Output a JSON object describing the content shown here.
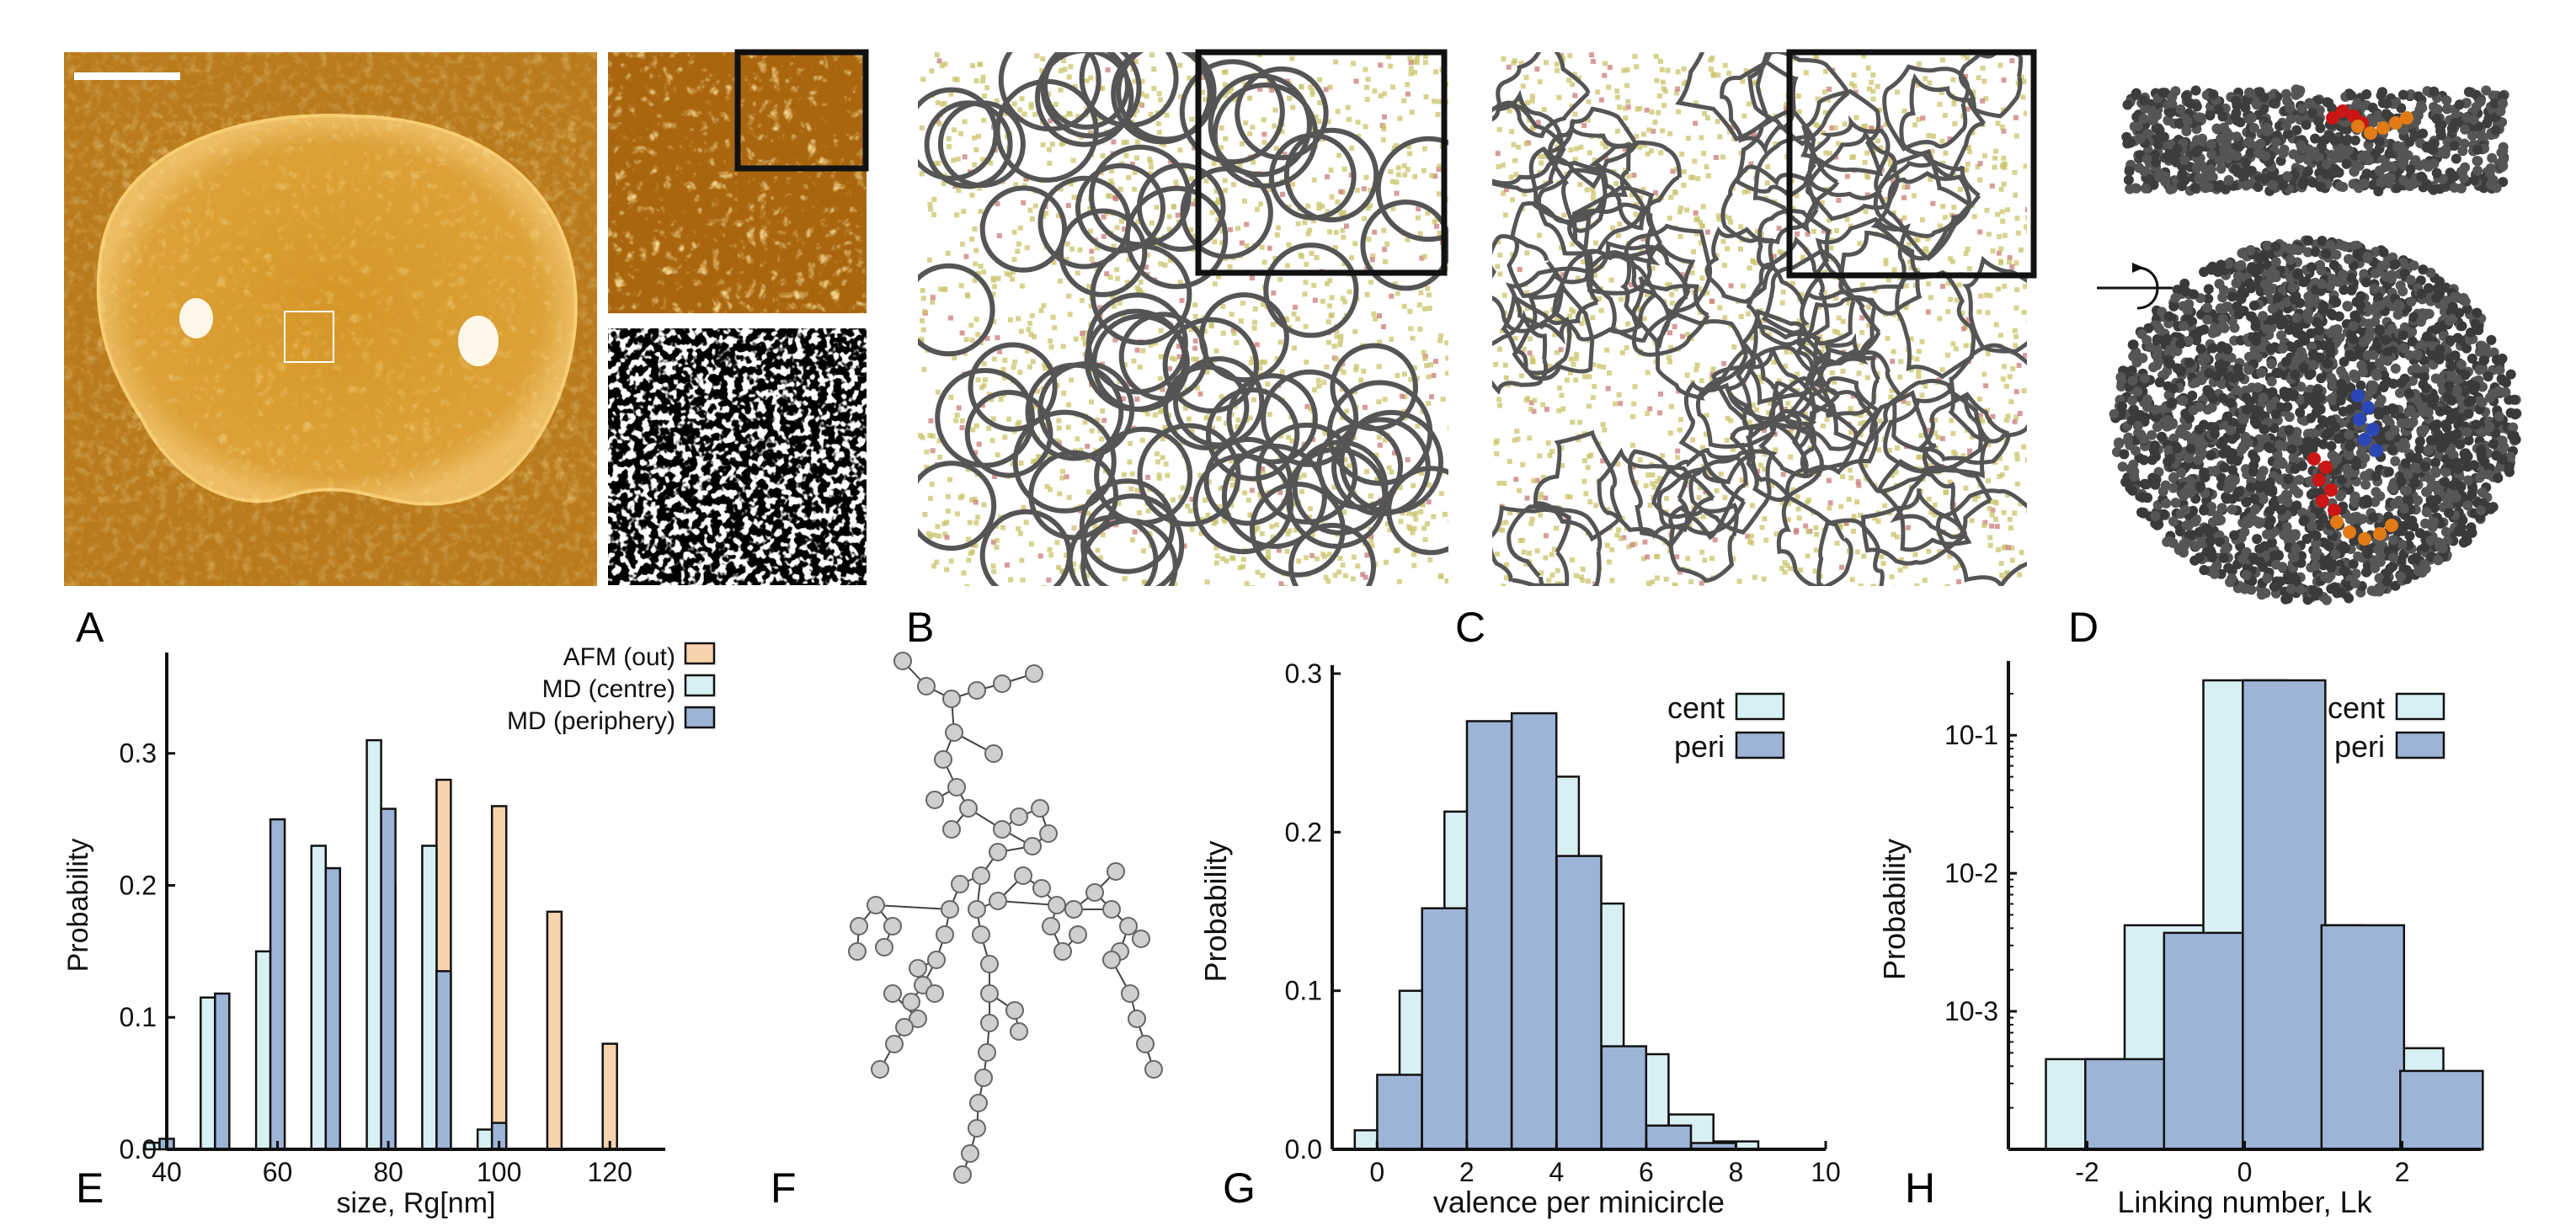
{
  "panel_labels": {
    "a": "A",
    "b": "B",
    "c": "C",
    "d": "D",
    "e": "E",
    "f": "F",
    "g": "G",
    "h": "H"
  },
  "colors": {
    "afm": "#f9d3ae",
    "centre": "#d8f0f4",
    "periphery": "#9db4d6",
    "afm_bg": "#c98a1f",
    "network_line": "#555555",
    "dot_yellow": "#c9c46a",
    "dot_red": "#c97a7a"
  },
  "chart_data": [
    {
      "id": "E",
      "type": "bar",
      "xlabel": "size, Rg[nm]",
      "ylabel": "Probability",
      "xlim": [
        40,
        130
      ],
      "ylim": [
        0,
        0.37
      ],
      "xticks": [
        40,
        60,
        80,
        100,
        120
      ],
      "xtick_labels": [
        "40",
        "60",
        "80",
        "100",
        "120"
      ],
      "yticks": [
        0.0,
        0.1,
        0.2,
        0.3
      ],
      "ytick_labels": [
        "0.0",
        "0.1",
        "0.2",
        "0.3"
      ],
      "legend_position": "top-right",
      "series": [
        {
          "name": "AFM (out)",
          "x": [
            80,
            90,
            100,
            110,
            120
          ],
          "values": [
            0.2,
            0.28,
            0.26,
            0.18,
            0.08
          ]
        },
        {
          "name": "MD (centre)",
          "x": [
            40,
            50,
            60,
            70,
            80,
            90,
            100
          ],
          "values": [
            0.005,
            0.115,
            0.15,
            0.23,
            0.31,
            0.23,
            0.015
          ]
        },
        {
          "name": "MD (periphery)",
          "x": [
            40,
            50,
            60,
            70,
            80,
            90,
            100
          ],
          "values": [
            0.008,
            0.118,
            0.25,
            0.213,
            0.258,
            0.135,
            0.02
          ]
        }
      ]
    },
    {
      "id": "G",
      "type": "bar",
      "xlabel": "valence per minicircle",
      "ylabel": "Probability",
      "xlim": [
        -1,
        10
      ],
      "ylim": [
        0,
        0.3
      ],
      "xticks": [
        0,
        2,
        4,
        6,
        8,
        10
      ],
      "xtick_labels": [
        "0",
        "2",
        "4",
        "6",
        "8",
        "10"
      ],
      "yticks": [
        0.0,
        0.1,
        0.2,
        0.3
      ],
      "ytick_labels": [
        "0.0",
        "0.1",
        "0.2",
        "0.3"
      ],
      "legend_position": "top-right",
      "series": [
        {
          "name": "cent",
          "x": [
            0,
            1,
            2,
            3,
            4,
            5,
            6,
            7,
            8
          ],
          "values": [
            0.012,
            0.1,
            0.213,
            0.245,
            0.235,
            0.155,
            0.06,
            0.022,
            0.005
          ]
        },
        {
          "name": "peri",
          "x": [
            0.5,
            1.5,
            2.5,
            3.5,
            4.5,
            5.5,
            6.5,
            7.5
          ],
          "values": [
            0.047,
            0.152,
            0.27,
            0.275,
            0.185,
            0.065,
            0.015,
            0.004
          ]
        }
      ]
    },
    {
      "id": "H",
      "type": "bar",
      "xlabel": "Linking number, Lk",
      "ylabel": "Probability",
      "yscale": "log",
      "xlim": [
        -3,
        3
      ],
      "ylim": [
        0.0001,
        0.3
      ],
      "xticks": [
        -2,
        0,
        2
      ],
      "xtick_labels": [
        "-2",
        "0",
        "2"
      ],
      "yticks": [
        0.001,
        0.01,
        0.1
      ],
      "ytick_labels": [
        "10-3",
        "10-2",
        "10-1"
      ],
      "legend_position": "top-right",
      "series": [
        {
          "name": "cent",
          "x": [
            -2,
            -1,
            0,
            1,
            2
          ],
          "values": [
            0.00045,
            0.0042,
            0.25,
            0.0042,
            0.00054
          ]
        },
        {
          "name": "peri",
          "x": [
            -1.5,
            -0.5,
            0.5,
            1.5,
            2.5
          ],
          "values": [
            0.00045,
            0.0037,
            0.25,
            0.0042,
            0.00037
          ]
        }
      ]
    }
  ]
}
